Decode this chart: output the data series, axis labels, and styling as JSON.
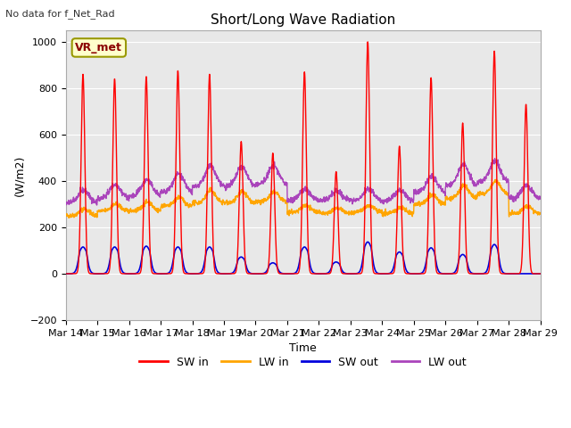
{
  "title": "Short/Long Wave Radiation",
  "ylabel": "(W/m2)",
  "xlabel": "Time",
  "top_left_text": "No data for f_Net_Rad",
  "box_label": "VR_met",
  "ylim": [
    -200,
    1050
  ],
  "yticks": [
    -200,
    0,
    200,
    400,
    600,
    800,
    1000
  ],
  "n_days": 15,
  "colors": {
    "SW_in": "#ff0000",
    "LW_in": "#ffa500",
    "SW_out": "#0000dd",
    "LW_out": "#aa44bb"
  },
  "legend_labels": [
    "SW in",
    "LW in",
    "SW out",
    "LW out"
  ],
  "background_color": "#e8e8e8",
  "fig_background": "#ffffff",
  "sw_in_peaks": [
    860,
    840,
    850,
    875,
    860,
    570,
    520,
    870,
    440,
    1000,
    550,
    845,
    650,
    960,
    730
  ],
  "sw_out_peaks": [
    160,
    160,
    165,
    160,
    160,
    100,
    65,
    160,
    70,
    190,
    130,
    155,
    115,
    175,
    0
  ],
  "lw_in_base": [
    250,
    270,
    270,
    290,
    305,
    305,
    310,
    265,
    260,
    265,
    260,
    300,
    325,
    345,
    260
  ],
  "lw_out_base": [
    305,
    325,
    335,
    350,
    375,
    375,
    385,
    315,
    315,
    315,
    315,
    350,
    380,
    395,
    325
  ],
  "lw_in_day_bump": [
    30,
    30,
    40,
    40,
    55,
    50,
    45,
    30,
    25,
    30,
    25,
    40,
    55,
    55,
    30
  ],
  "lw_out_day_bump": [
    55,
    60,
    70,
    80,
    90,
    85,
    80,
    50,
    40,
    50,
    45,
    70,
    90,
    90,
    55
  ]
}
